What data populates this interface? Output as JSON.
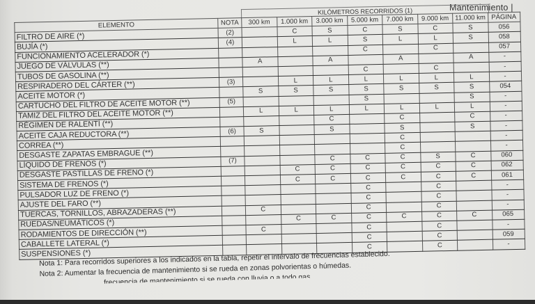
{
  "page_header": "Mantenimiento  |",
  "table": {
    "group_header": "KILÓMETROS RECORRIDOS (1)",
    "columns": [
      "ELEMENTO",
      "NOTA",
      "300 km",
      "1.000 km",
      "3.000 km",
      "5.000 km",
      "7.000 km",
      "9.000 km",
      "11.000 km",
      "PÁGINA"
    ],
    "rows": [
      {
        "element": "FILTRO DE AIRE (*)",
        "nota": "(2)",
        "v": [
          "",
          "C",
          "S",
          "C",
          "S",
          "C",
          "S"
        ],
        "pagina": "056"
      },
      {
        "element": "BUJÍA (*)",
        "nota": "(4)",
        "v": [
          "",
          "L",
          "L",
          "S",
          "L",
          "L",
          "S"
        ],
        "pagina": "058"
      },
      {
        "element": "FUNCIONAMIENTO ACELERADOR (*)",
        "nota": "",
        "v": [
          "",
          "",
          "",
          "C",
          "",
          "C",
          ""
        ],
        "pagina": "057"
      },
      {
        "element": "JUEGO DE VÁLVULAS (**)",
        "nota": "",
        "v": [
          "A",
          "",
          "A",
          "",
          "A",
          "",
          "A"
        ],
        "pagina": "-"
      },
      {
        "element": "TUBOS DE GASOLINA (**)",
        "nota": "",
        "v": [
          "",
          "",
          "",
          "C",
          "",
          "C",
          ""
        ],
        "pagina": "-"
      },
      {
        "element": "RESPIRADERO DEL CÁRTER (**)",
        "nota": "(3)",
        "v": [
          "",
          "L",
          "L",
          "L",
          "L",
          "L",
          "L"
        ],
        "pagina": "-"
      },
      {
        "element": "ACEITE MOTOR (*)",
        "nota": "",
        "v": [
          "S",
          "S",
          "S",
          "S",
          "S",
          "S",
          "S"
        ],
        "pagina": "054"
      },
      {
        "element": "CARTUCHO DEL FILTRO DE ACEITE MOTOR (**)",
        "nota": "(5)",
        "v": [
          "",
          "",
          "",
          "S",
          "",
          "",
          "S"
        ],
        "pagina": "-"
      },
      {
        "element": "TAMIZ DEL FILTRO DEL ACEITE MOTOR (**)",
        "nota": "",
        "v": [
          "L",
          "L",
          "L",
          "L",
          "L",
          "L",
          "L"
        ],
        "pagina": "-"
      },
      {
        "element": "RÉGIMEN DE RALENTÍ (**)",
        "nota": "",
        "v": [
          "",
          "",
          "C",
          "",
          "C",
          "",
          "C"
        ],
        "pagina": "-"
      },
      {
        "element": "ACEITE CAJA REDUCTORA (**)",
        "nota": "(6)",
        "v": [
          "S",
          "",
          "S",
          "",
          "S",
          "",
          "S"
        ],
        "pagina": "-"
      },
      {
        "element": "CORREA (**)",
        "nota": "",
        "v": [
          "",
          "",
          "",
          "",
          "C",
          "",
          ""
        ],
        "pagina": "-"
      },
      {
        "element": "DESGASTE ZAPATAS EMBRAGUE (**)",
        "nota": "",
        "v": [
          "",
          "",
          "",
          "",
          "C",
          "",
          ""
        ],
        "pagina": "-"
      },
      {
        "element": "LÍQUIDO DE FRENOS (*)",
        "nota": "(7)",
        "v": [
          "",
          "",
          "C",
          "C",
          "C",
          "S",
          "C"
        ],
        "pagina": "060"
      },
      {
        "element": "DESGASTE PASTILLAS DE FRENO (*)",
        "nota": "",
        "v": [
          "",
          "C",
          "C",
          "C",
          "C",
          "C",
          "C"
        ],
        "pagina": "062"
      },
      {
        "element": "SISTEMA DE FRENOS (*)",
        "nota": "",
        "v": [
          "",
          "C",
          "C",
          "C",
          "C",
          "C",
          "C"
        ],
        "pagina": "061"
      },
      {
        "element": "PULSADOR LUZ DE FRENO (*)",
        "nota": "",
        "v": [
          "",
          "",
          "",
          "C",
          "",
          "C",
          ""
        ],
        "pagina": "-"
      },
      {
        "element": "AJUSTE DEL FARO (**)",
        "nota": "",
        "v": [
          "",
          "",
          "",
          "C",
          "",
          "C",
          ""
        ],
        "pagina": "-"
      },
      {
        "element": "TUERCAS, TORNILLOS, ABRAZADERAS (**)",
        "nota": "",
        "v": [
          "C",
          "",
          "",
          "C",
          "",
          "C",
          ""
        ],
        "pagina": "-"
      },
      {
        "element": "RUEDAS/NEUMÁTICOS (*)",
        "nota": "",
        "v": [
          "",
          "C",
          "C",
          "C",
          "C",
          "C",
          "C"
        ],
        "pagina": "065"
      },
      {
        "element": "RODAMIENTOS DE DIRECCIÓN (**)",
        "nota": "",
        "v": [
          "C",
          "",
          "",
          "C",
          "",
          "C",
          ""
        ],
        "pagina": "-"
      },
      {
        "element": "CABALLETE LATERAL (*)",
        "nota": "",
        "v": [
          "",
          "",
          "",
          "C",
          "",
          "C",
          ""
        ],
        "pagina": "059"
      },
      {
        "element": "SUSPENSIONES (*)",
        "nota": "",
        "v": [
          "",
          "",
          "",
          "C",
          "",
          "C",
          ""
        ],
        "pagina": "-"
      }
    ]
  },
  "notes": [
    "Nota 1: Para recorridos superiores a los indicados en la tabla, repetir el intervalo de frecuencias establecido.",
    "Nota 2: Aumentar la frecuencia de mantenimiento si se rueda en zonas polvorientas o húmedas.",
    "frecuencia de mantenimiento si se rueda con lluvia o a todo gas."
  ]
}
